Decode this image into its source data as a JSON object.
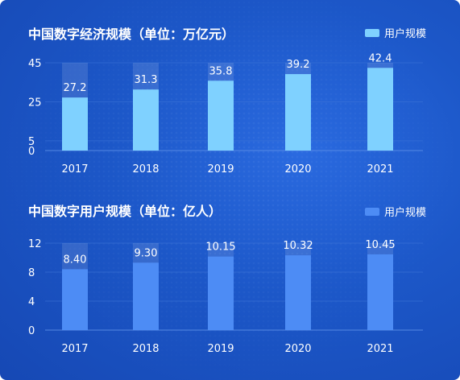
{
  "colors": {
    "series1": "#7fd1ff",
    "series2": "#4d8cf5",
    "axis_line": "#5b8ee6",
    "grid_line": "#3f76d8",
    "text": "#ffffff"
  },
  "chart_data": [
    {
      "type": "bar",
      "title": "中国数字经济规模（单位：万亿元）",
      "categories": [
        "2017",
        "2018",
        "2019",
        "2020",
        "2021"
      ],
      "series": [
        {
          "name": "用户规模",
          "values": [
            27.2,
            31.3,
            35.8,
            39.2,
            42.4
          ]
        }
      ],
      "data_labels": [
        "27.2",
        "31.3",
        "35.8",
        "39.2",
        "42.4"
      ],
      "ylim": [
        0,
        45
      ],
      "yticks": [
        "0",
        "5",
        "25",
        "45"
      ],
      "grid": true,
      "legend_position": "top-right"
    },
    {
      "type": "bar",
      "title": "中国数字用户规模（单位：亿人）",
      "categories": [
        "2017",
        "2018",
        "2019",
        "2020",
        "2021"
      ],
      "series": [
        {
          "name": "用户规模",
          "values": [
            8.4,
            9.3,
            10.15,
            10.32,
            10.45
          ]
        }
      ],
      "data_labels": [
        "8.40",
        "9.30",
        "10.15",
        "10.32",
        "10.45"
      ],
      "ylim": [
        0,
        12
      ],
      "yticks": [
        "0",
        "4",
        "8",
        "12"
      ],
      "grid": true,
      "legend_position": "top-right"
    }
  ]
}
